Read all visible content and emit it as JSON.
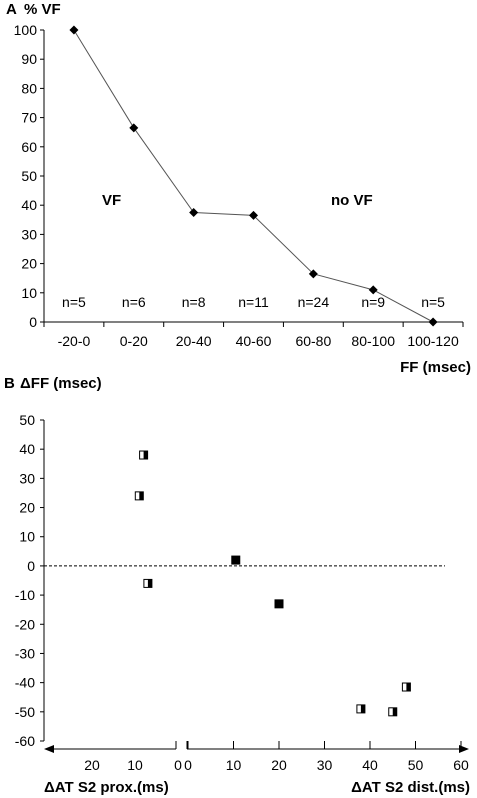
{
  "chart_data": [
    {
      "panel": "A",
      "type": "line",
      "ylabel": "% VF",
      "xlabel": "FF (msec)",
      "categories": [
        "-20-0",
        "0-20",
        "20-40",
        "40-60",
        "60-80",
        "80-100",
        "100-120"
      ],
      "series": [
        {
          "values": [
            100,
            66.5,
            37.5,
            36.5,
            16.5,
            11,
            0
          ]
        }
      ],
      "counts": [
        "n=5",
        "n=6",
        "n=8",
        "n=11",
        "n=24",
        "n=9",
        "n=5"
      ],
      "ylim": [
        0,
        100
      ],
      "yticks": [
        0,
        10,
        20,
        30,
        40,
        50,
        60,
        70,
        80,
        90,
        100
      ],
      "annotations": [
        "VF",
        "no VF"
      ],
      "grid": false,
      "color": "#000000"
    },
    {
      "panel": "B",
      "type": "scatter",
      "ylabel": "ΔFF (msec)",
      "xlabel_left": "ΔAT S2 prox.(ms)",
      "xlabel_right": "ΔAT S2 dist.(ms)",
      "ylim": [
        -60,
        50
      ],
      "yticks": [
        50,
        40,
        30,
        20,
        10,
        0,
        -10,
        -20,
        -30,
        -40,
        -50,
        -60
      ],
      "xticks_left": [
        "20",
        "10",
        "0"
      ],
      "xticks_right": [
        "0",
        "10",
        "20",
        "30",
        "40",
        "50",
        "60"
      ],
      "reference_line_y": 0,
      "points_proximal": [
        {
          "x": 8,
          "y": 38
        },
        {
          "x": 9,
          "y": 24
        },
        {
          "x": 7,
          "y": -6
        }
      ],
      "points_distal": [
        {
          "x": 10.5,
          "y": 2
        },
        {
          "x": 20,
          "y": -13
        },
        {
          "x": 48,
          "y": -41.5
        },
        {
          "x": 38,
          "y": -49
        },
        {
          "x": 45,
          "y": -50
        }
      ],
      "markers": {
        "proximal": "half-filled square",
        "distal_filled": "filled square",
        "distal_half": "half-filled square"
      }
    }
  ]
}
